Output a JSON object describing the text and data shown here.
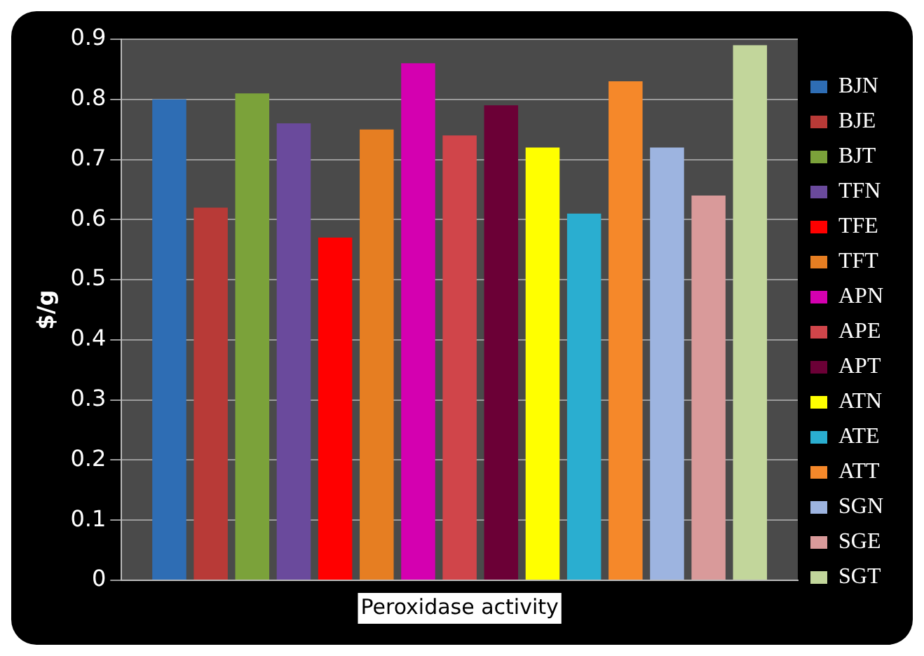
{
  "chart_data": {
    "type": "bar",
    "categories": [
      "Peroxidase activity"
    ],
    "ylabel": "$/g",
    "series": [
      {
        "name": "BJN",
        "color": "#2e6db4",
        "values": [
          0.8
        ]
      },
      {
        "name": "BJE",
        "color": "#b83a37",
        "values": [
          0.62
        ]
      },
      {
        "name": "BJT",
        "color": "#7ba23a",
        "values": [
          0.81
        ]
      },
      {
        "name": "TFN",
        "color": "#6a4a9c",
        "values": [
          0.76
        ]
      },
      {
        "name": "TFE",
        "color": "#ff0000",
        "values": [
          0.57
        ]
      },
      {
        "name": "TFT",
        "color": "#e67e22",
        "values": [
          0.75
        ]
      },
      {
        "name": "APN",
        "color": "#d400b0",
        "values": [
          0.86
        ]
      },
      {
        "name": "APE",
        "color": "#d0454a",
        "values": [
          0.74
        ]
      },
      {
        "name": "APT",
        "color": "#6b0036",
        "values": [
          0.79
        ]
      },
      {
        "name": "ATN",
        "color": "#ffff00",
        "values": [
          0.72
        ]
      },
      {
        "name": "ATE",
        "color": "#2aaed0",
        "values": [
          0.61
        ]
      },
      {
        "name": "ATT",
        "color": "#f5882a",
        "values": [
          0.83
        ]
      },
      {
        "name": "SGN",
        "color": "#9db4e0",
        "values": [
          0.72
        ]
      },
      {
        "name": "SGE",
        "color": "#d99a9a",
        "values": [
          0.64
        ]
      },
      {
        "name": "SGT",
        "color": "#c2d69b",
        "values": [
          0.89
        ]
      }
    ],
    "ylim": [
      0,
      0.9
    ],
    "yticks": [
      0,
      0.1,
      0.2,
      0.3,
      0.4,
      0.5,
      0.6,
      0.7,
      0.8,
      0.9
    ],
    "grid": "y",
    "legend": "right"
  }
}
